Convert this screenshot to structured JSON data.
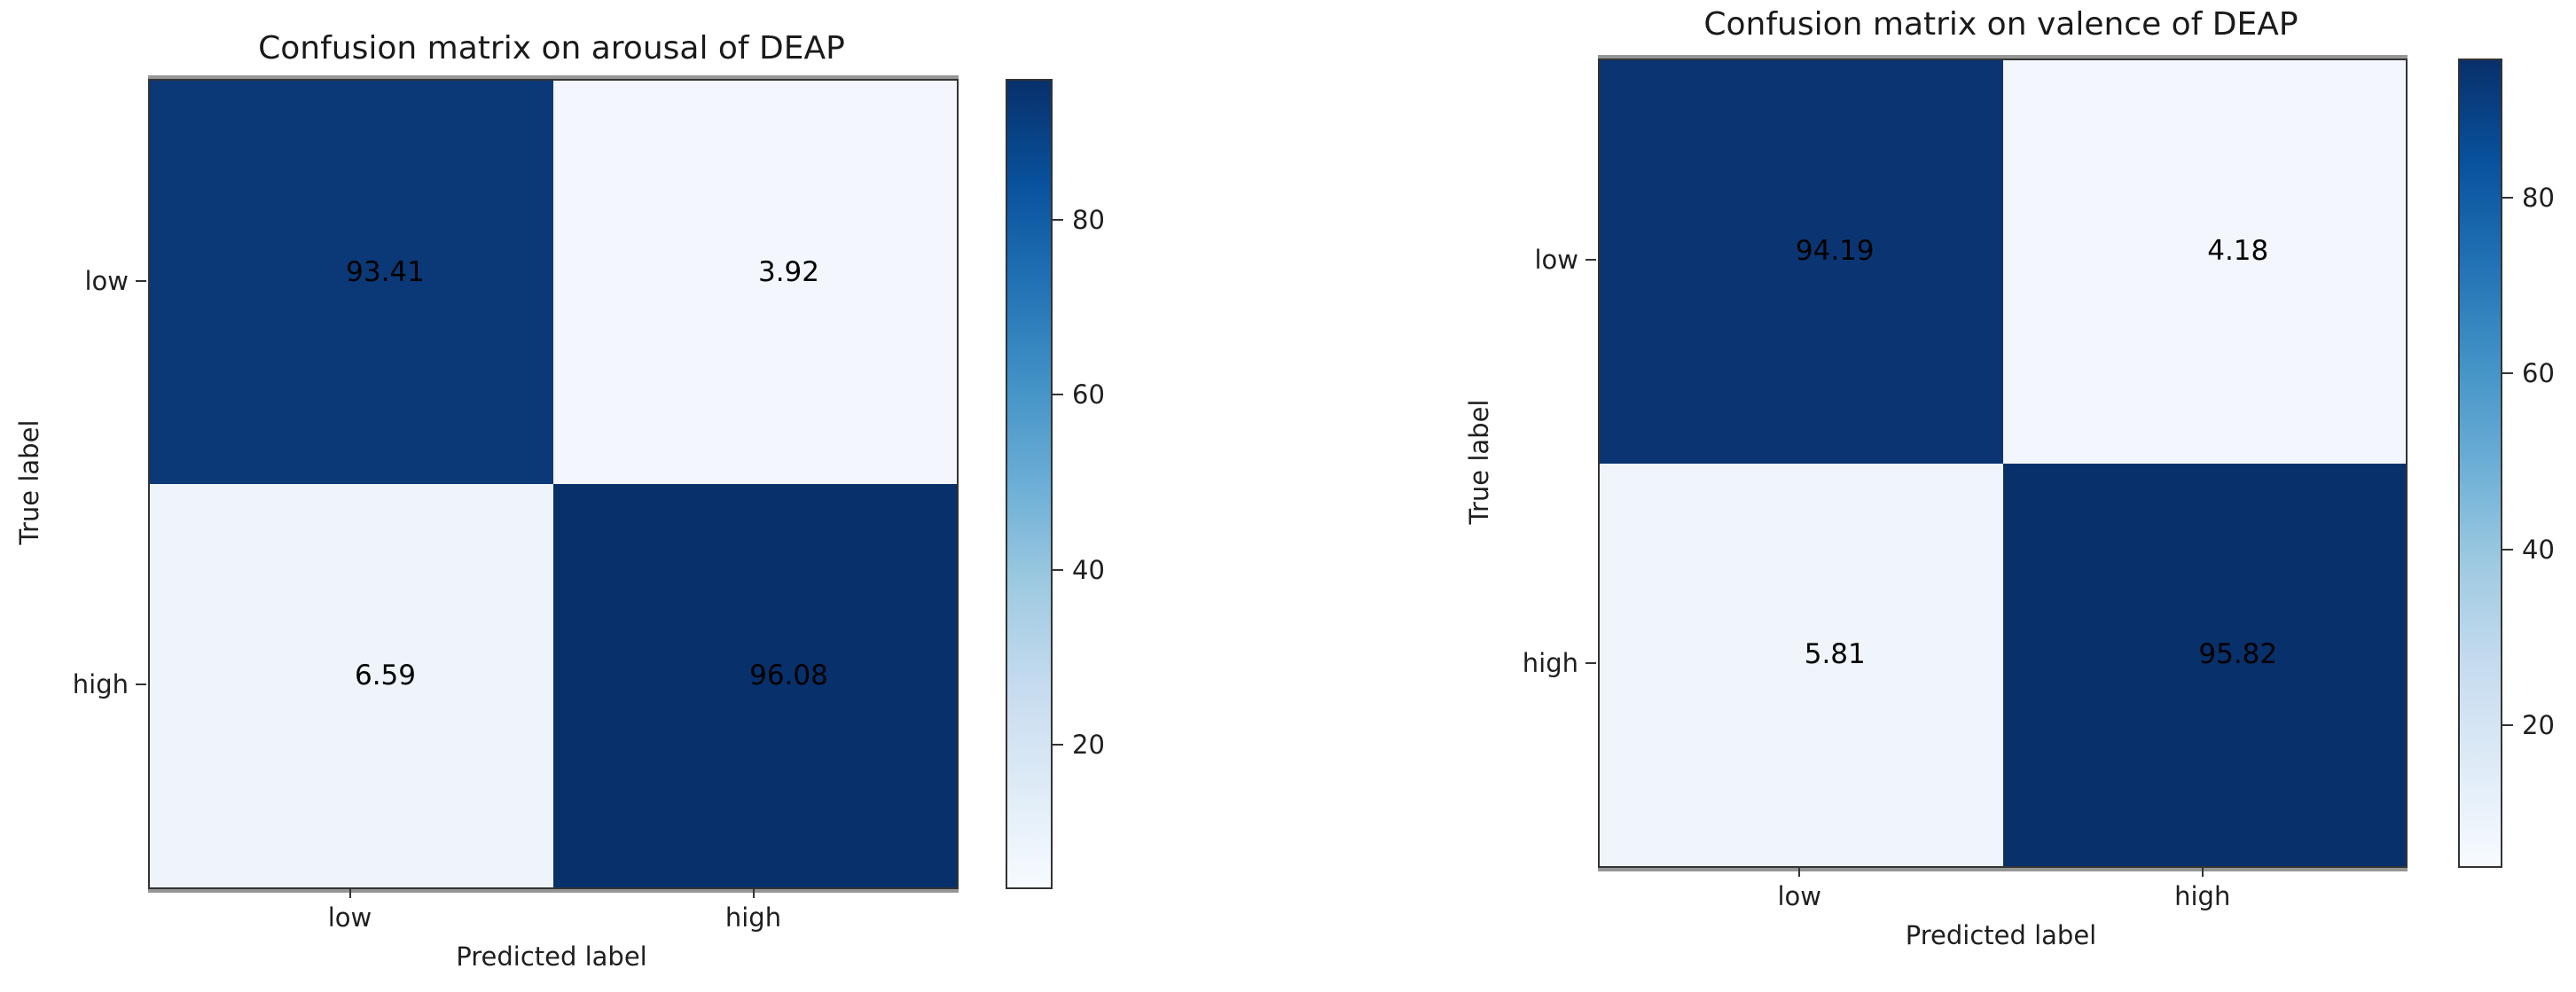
{
  "chart_data": [
    {
      "type": "heatmap",
      "title": "Confusion matrix on arousal of DEAP",
      "xlabel": "Predicted label",
      "ylabel": "True label",
      "x_tick_labels": [
        "low",
        "high"
      ],
      "y_tick_labels": [
        "low",
        "high"
      ],
      "values": [
        [
          93.41,
          3.92
        ],
        [
          6.59,
          96.08
        ]
      ],
      "vmin": 3.92,
      "vmax": 96.08,
      "colormap": "Blues",
      "colorbar_ticks": [
        20,
        40,
        60,
        80
      ],
      "cell_colors": [
        [
          "#0b3876",
          "#f3f7fd"
        ],
        [
          "#eff4fb",
          "#08306b"
        ]
      ],
      "value_text_color": "#000000",
      "legend_position": "right-colorbar",
      "grid": false
    },
    {
      "type": "heatmap",
      "title": "Confusion matrix on valence of DEAP",
      "xlabel": "Predicted label",
      "ylabel": "True label",
      "x_tick_labels": [
        "low",
        "high"
      ],
      "y_tick_labels": [
        "low",
        "high"
      ],
      "values": [
        [
          94.19,
          4.18
        ],
        [
          5.81,
          95.82
        ]
      ],
      "vmin": 4.18,
      "vmax": 95.82,
      "colormap": "Blues",
      "colorbar_ticks": [
        20,
        40,
        60,
        80
      ],
      "cell_colors": [
        [
          "#0a3572",
          "#f3f7fd"
        ],
        [
          "#f0f5fc",
          "#08306b"
        ]
      ],
      "value_text_color": "#000000",
      "legend_position": "right-colorbar",
      "grid": false
    }
  ],
  "colors": {
    "background": "#ffffff",
    "spine": "#333333",
    "axis_text": "#1f1f1f",
    "title_text": "#1a1a1a",
    "colormap_stops": [
      "#f7fbff",
      "#deebf7",
      "#c6dbef",
      "#9ecae1",
      "#6baed6",
      "#4292c6",
      "#2171b5",
      "#08519c",
      "#08306b"
    ]
  }
}
